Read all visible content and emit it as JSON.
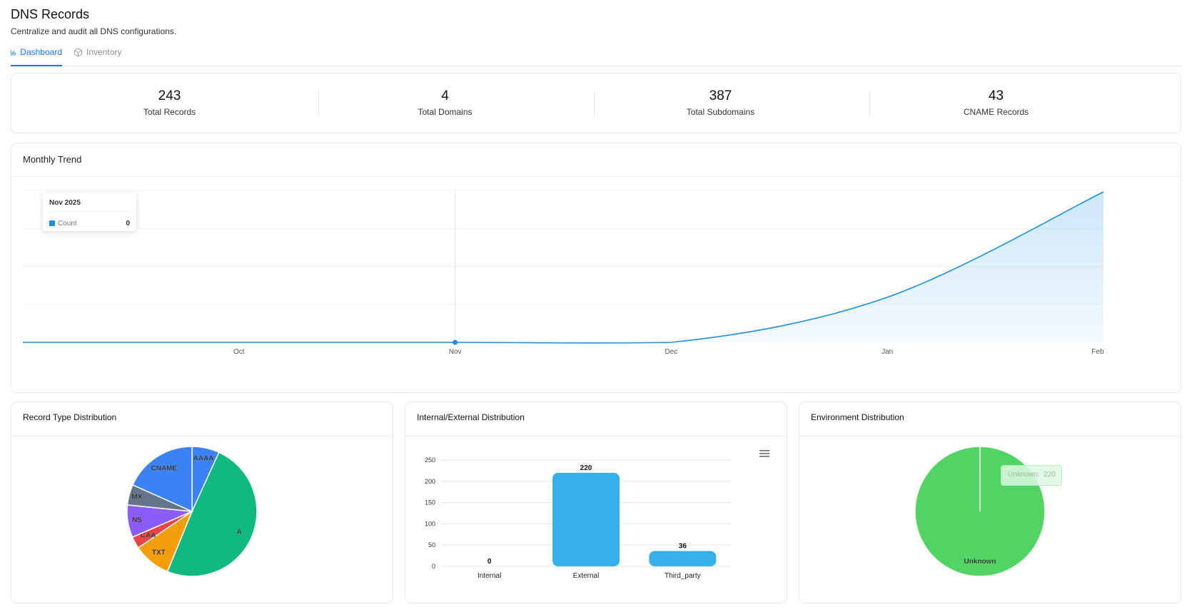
{
  "header": {
    "title": "DNS Records",
    "subtitle": "Centralize and audit all DNS configurations."
  },
  "tabs": [
    {
      "label": "Dashboard",
      "icon": "bar-chart-icon",
      "active": true
    },
    {
      "label": "Inventory",
      "icon": "cube-icon",
      "active": false
    }
  ],
  "stats": [
    {
      "value": "243",
      "label": "Total Records"
    },
    {
      "value": "4",
      "label": "Total Domains"
    },
    {
      "value": "387",
      "label": "Total Subdomains"
    },
    {
      "value": "43",
      "label": "CNAME Records"
    }
  ],
  "trend": {
    "title": "Monthly Trend",
    "tooltip": {
      "title": "Nov 2025",
      "series": "Count",
      "value": "0"
    }
  },
  "record_type": {
    "title": "Record Type Distribution"
  },
  "internal_external": {
    "title": "Internal/External Distribution"
  },
  "environment": {
    "title": "Environment Distribution",
    "tooltip_label": "Unknown:",
    "tooltip_value": "220"
  },
  "colors": {
    "accent": "#1677ff",
    "line": "#1a8fe3",
    "bar": "#35b0ea",
    "env_green": "#52d465"
  },
  "chart_data": [
    {
      "type": "area",
      "title": "Monthly Trend",
      "categories": [
        "Oct",
        "Nov",
        "Dec",
        "Jan",
        "Feb"
      ],
      "series": [
        {
          "name": "Count",
          "values": [
            0,
            0,
            0,
            12,
            40
          ]
        }
      ],
      "grid": true
    },
    {
      "type": "pie",
      "title": "Record Type Distribution",
      "labels": [
        "AAAA",
        "A",
        "TXT",
        "CAA",
        "NS",
        "MX",
        "CNAME"
      ],
      "values": [
        16,
        116,
        22,
        7,
        19,
        12,
        43
      ],
      "colors": [
        "#3b82f6",
        "#10b981",
        "#f59e0b",
        "#ef4444",
        "#8b5cf6",
        "#64748b",
        "#3b82f6"
      ]
    },
    {
      "type": "bar",
      "title": "Internal/External Distribution",
      "categories": [
        "Internal",
        "External",
        "Third_party"
      ],
      "values": [
        0,
        220,
        36
      ],
      "ylim": [
        0,
        250
      ],
      "yticks": [
        "0",
        "50",
        "100",
        "150",
        "200",
        "250"
      ],
      "grid": true
    },
    {
      "type": "pie",
      "title": "Environment Distribution",
      "labels": [
        "Unknown"
      ],
      "values": [
        220
      ],
      "colors": [
        "#52d465"
      ]
    }
  ]
}
